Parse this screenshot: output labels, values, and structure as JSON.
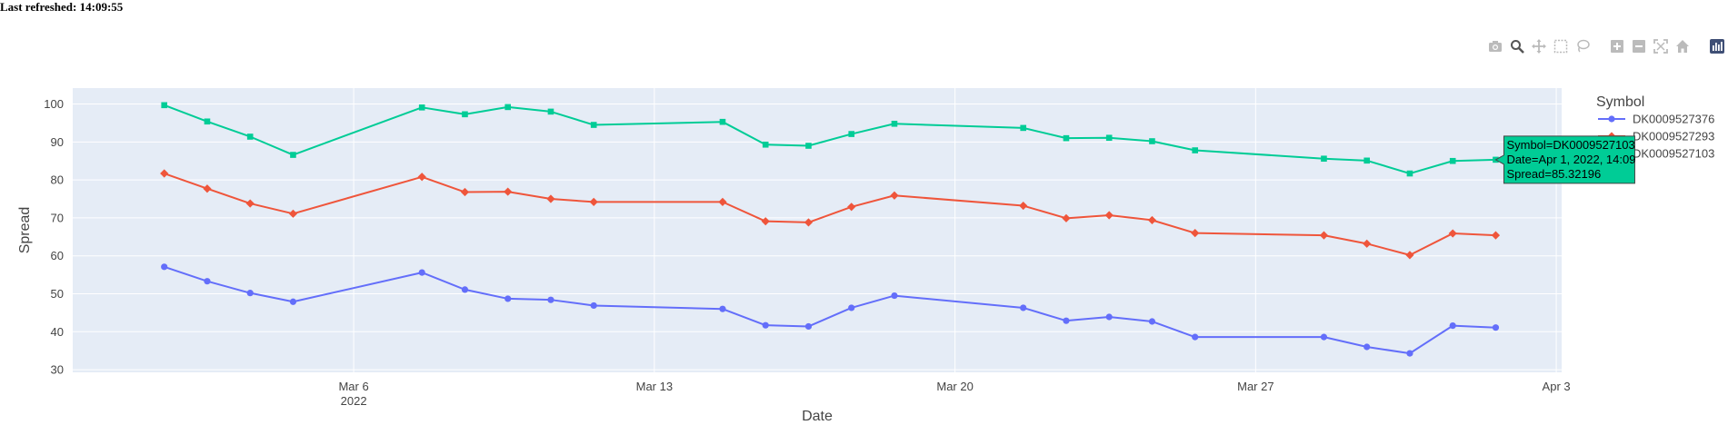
{
  "header": {
    "last_refreshed": "Last refreshed: 14:09:55"
  },
  "modebar": {
    "buttons": [
      "camera-icon",
      "zoom-icon",
      "pan-icon",
      "box-select-icon",
      "lasso-select-icon",
      "zoom-in-icon",
      "zoom-out-icon",
      "autoscale-icon",
      "reset-axes-icon",
      "plotly-logo-icon"
    ],
    "color": "#bbbbbb",
    "active_color": "#555555",
    "logo_color": "#3f4f75"
  },
  "chart_data": {
    "type": "line",
    "xlabel": "Date",
    "ylabel": "Spread",
    "xlim": [
      "2022-02-27 11:00",
      "2022-04-03 03:00"
    ],
    "ylim": [
      29.3,
      104.2
    ],
    "yticks": [
      30,
      40,
      50,
      60,
      70,
      80,
      90,
      100
    ],
    "xticks": [
      {
        "date": "2022-03-06",
        "label": "Mar 6",
        "sublabel": "2022"
      },
      {
        "date": "2022-03-13",
        "label": "Mar 13",
        "sublabel": ""
      },
      {
        "date": "2022-03-20",
        "label": "Mar 20",
        "sublabel": ""
      },
      {
        "date": "2022-03-27",
        "label": "Mar 27",
        "sublabel": ""
      },
      {
        "date": "2022-04-03",
        "label": "Apr 3",
        "sublabel": ""
      }
    ],
    "grid": true,
    "plot_bgcolor": "#e5ecf6",
    "x": [
      "2022-03-01 14:09",
      "2022-03-02 14:09",
      "2022-03-03 14:09",
      "2022-03-04 14:09",
      "2022-03-07 14:09",
      "2022-03-08 14:09",
      "2022-03-09 14:09",
      "2022-03-10 14:09",
      "2022-03-11 14:09",
      "2022-03-14 14:09",
      "2022-03-15 14:09",
      "2022-03-16 14:09",
      "2022-03-17 14:09",
      "2022-03-18 14:09",
      "2022-03-21 14:09",
      "2022-03-22 14:09",
      "2022-03-23 14:09",
      "2022-03-24 14:09",
      "2022-03-25 14:09",
      "2022-03-28 14:09",
      "2022-03-29 14:09",
      "2022-03-30 14:09",
      "2022-03-31 14:09",
      "2022-04-01 14:09"
    ],
    "legend": {
      "title": "Symbol",
      "position": "right"
    },
    "series": [
      {
        "name": "DK0009527376",
        "color": "#636efa",
        "marker": "circle",
        "values": [
          57.1,
          53.3,
          50.2,
          47.9,
          55.6,
          51.1,
          48.7,
          48.4,
          46.9,
          46.0,
          41.7,
          41.4,
          46.3,
          49.5,
          46.3,
          42.9,
          43.9,
          42.7,
          38.6,
          38.6,
          36.0,
          34.3,
          41.6,
          41.1
        ]
      },
      {
        "name": "DK0009527293",
        "color": "#ef553b",
        "marker": "diamond",
        "values": [
          81.7,
          77.7,
          73.8,
          71.1,
          80.8,
          76.8,
          76.9,
          75.0,
          74.2,
          74.2,
          69.1,
          68.8,
          72.9,
          75.9,
          73.2,
          69.9,
          70.7,
          69.4,
          66.0,
          65.4,
          63.2,
          60.2,
          65.9,
          65.4
        ]
      },
      {
        "name": "DK0009527103",
        "color": "#00cc96",
        "marker": "square",
        "values": [
          99.7,
          95.4,
          91.4,
          86.6,
          99.1,
          97.3,
          99.2,
          98.0,
          94.5,
          95.3,
          89.3,
          89.0,
          92.1,
          94.8,
          93.7,
          91.0,
          91.1,
          90.2,
          87.8,
          85.6,
          85.1,
          81.7,
          85.0,
          85.32196
        ]
      }
    ],
    "hover": {
      "series_index": 2,
      "point_index": 23,
      "lines": [
        "Symbol=DK0009527103",
        "Date=Apr 1, 2022, 14:09",
        "Spread=85.32196"
      ]
    }
  }
}
